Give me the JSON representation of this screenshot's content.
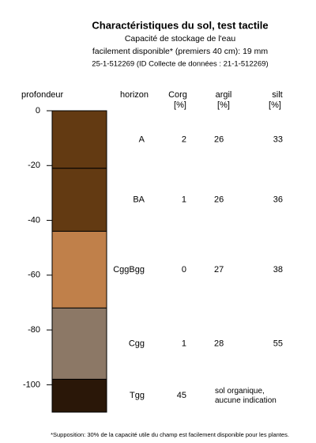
{
  "chart_data": {
    "type": "soil-profile",
    "title": "Charactéristiques du sol, test tactile",
    "subtitle": [
      "Capacité de stockage de l'eau",
      "facilement disponible* (premiers 40 cm): 19 mm",
      "25-1-512269 (ID Collecte de données : 21-1-512269)"
    ],
    "y_label": "profondeur",
    "ylim": [
      0,
      -110
    ],
    "yticks": [
      0,
      -20,
      -40,
      -60,
      -80,
      -100
    ],
    "columns": {
      "horizon": [
        "horizon"
      ],
      "corg": [
        "Corg",
        "[%]"
      ],
      "argil": [
        "argil",
        "[%]"
      ],
      "silt": [
        "silt",
        "[%]"
      ]
    },
    "layers": [
      {
        "horizon": "A",
        "top": 0,
        "bottom": -21,
        "color": "#633a12",
        "corg": 2,
        "argil": 26,
        "silt": 33
      },
      {
        "horizon": "BA",
        "top": -21,
        "bottom": -44,
        "color": "#633a12",
        "corg": 1,
        "argil": 26,
        "silt": 36
      },
      {
        "horizon": "CggBgg",
        "top": -44,
        "bottom": -72,
        "color": "#c0804a",
        "corg": 0,
        "argil": 27,
        "silt": 38
      },
      {
        "horizon": "Cgg",
        "top": -72,
        "bottom": -98,
        "color": "#8c7866",
        "corg": 1,
        "argil": 28,
        "silt": 55
      },
      {
        "horizon": "Tgg",
        "top": -98,
        "bottom": -110,
        "color": "#2a1708",
        "corg": 45,
        "note": [
          "sol organique,",
          "aucune indication"
        ]
      }
    ],
    "footnote": "*Supposition: 30% de la capacité utile du champ est facilement disponible pour les plantes."
  }
}
